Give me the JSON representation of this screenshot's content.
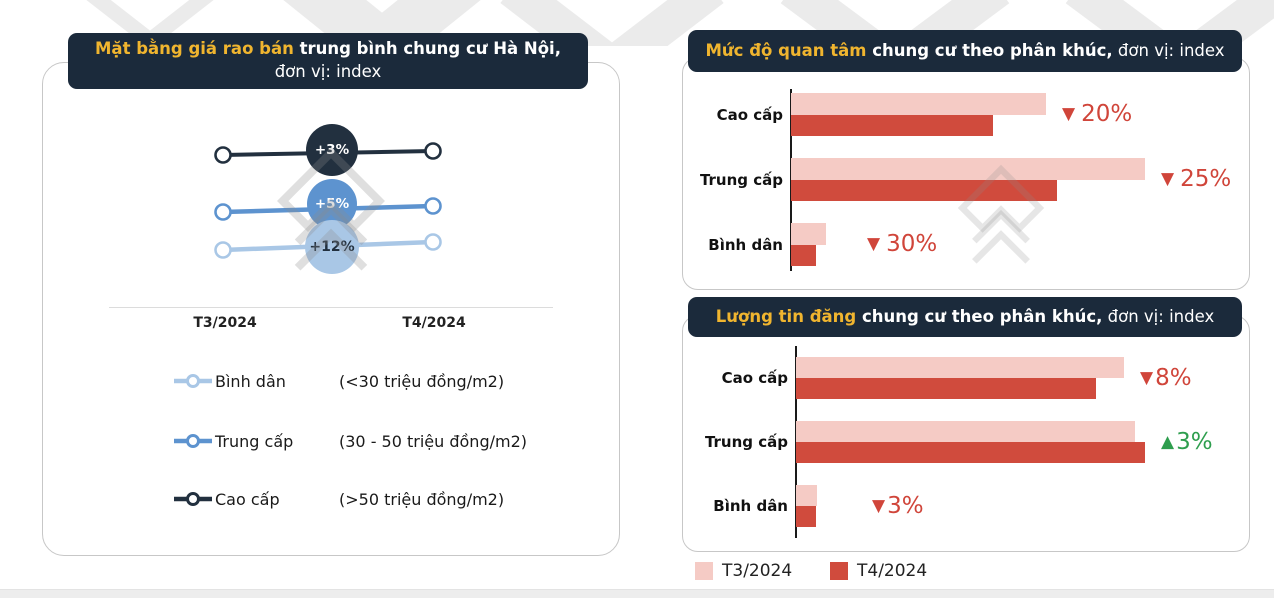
{
  "colors": {
    "header_bg": "#1b2a3b",
    "accent_yellow": "#f0b52f",
    "t3_pink": "#f5cbc5",
    "t4_red": "#d04b3d",
    "down_red": "#d0453a",
    "up_green": "#2e9e4e",
    "series_dark": "#22303f",
    "series_mid": "#5d93cf",
    "series_light": "#a9c7e6"
  },
  "legend": {
    "t3": "T3/2024",
    "t4": "T4/2024"
  },
  "chart_data": [
    {
      "id": "price-trend",
      "type": "line",
      "subtype": "slope",
      "title_highlight": "Mặt bằng giá rao bán",
      "title_bold": " trung bình chung cư Hà Nội,",
      "title_line2": "đơn vị: index",
      "x": [
        "T3/2024",
        "T4/2024"
      ],
      "series": [
        {
          "name": "Cao cấp",
          "range": "(>50 triệu đồng/m2)",
          "change": "+3%",
          "color": "#22303f",
          "badge_text_color": "#ffffff"
        },
        {
          "name": "Trung cấp",
          "range": "(30 - 50 triệu đồng/m2)",
          "change": "+5%",
          "color": "#5d93cf",
          "badge_text_color": "#ffffff"
        },
        {
          "name": "Bình dân",
          "range": "(<30 triệu đồng/m2)",
          "change": "+12%",
          "color": "#a9c7e6",
          "badge_text_color": "#22303f"
        }
      ]
    },
    {
      "id": "interest-level",
      "type": "bar",
      "orientation": "horizontal",
      "title_highlight": "Mức độ quan tâm",
      "title_bold": " chung cư theo phân khúc,",
      "title_normal": " đơn vị: index",
      "categories": [
        "Cao cấp",
        "Trung cấp",
        "Bình dân"
      ],
      "series": [
        {
          "name": "T3/2024",
          "values": [
            72,
            100,
            10
          ]
        },
        {
          "name": "T4/2024",
          "values": [
            57,
            75,
            7
          ]
        }
      ],
      "changes": [
        {
          "direction": "down",
          "value": "20%"
        },
        {
          "direction": "down",
          "value": "25%"
        },
        {
          "direction": "down",
          "value": "30%"
        }
      ],
      "xlim": [
        0,
        100
      ],
      "legend_position": "bottom"
    },
    {
      "id": "listing-volume",
      "type": "bar",
      "orientation": "horizontal",
      "title_highlight": "Lượng tin đăng",
      "title_bold": " chung cư theo phân khúc,",
      "title_normal": " đơn vị: index",
      "categories": [
        "Cao cấp",
        "Trung cấp",
        "Bình dân"
      ],
      "series": [
        {
          "name": "T3/2024",
          "values": [
            94,
            97,
            6
          ]
        },
        {
          "name": "T4/2024",
          "values": [
            86,
            100,
            5.7
          ]
        }
      ],
      "changes": [
        {
          "direction": "down",
          "value": "8%"
        },
        {
          "direction": "up",
          "value": "3%"
        },
        {
          "direction": "down",
          "value": "3%"
        }
      ],
      "xlim": [
        0,
        100
      ],
      "legend_position": "bottom"
    }
  ]
}
